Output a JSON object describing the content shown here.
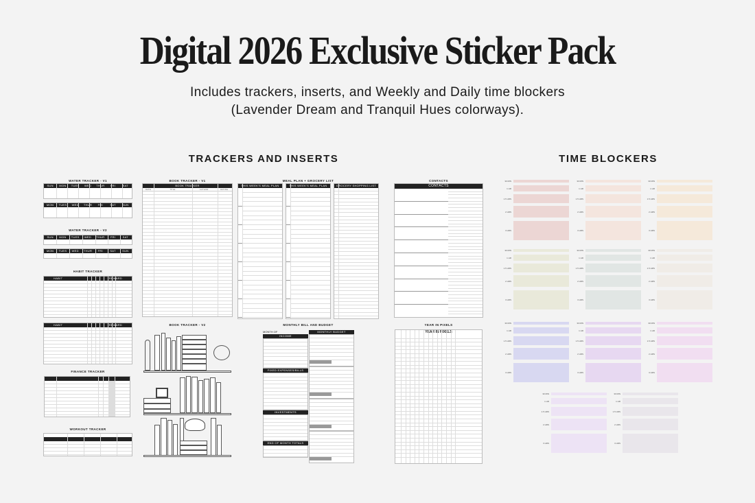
{
  "title": "Digital 2026 Exclusive Sticker Pack",
  "subtitle_line1": "Includes trackers, inserts, and Weekly and Daily time blockers",
  "subtitle_line2": "(Lavender Dream and Tranquil Hues colorways).",
  "sections": {
    "trackers": "TRACKERS AND INSERTS",
    "time_blockers": "TIME BLOCKERS"
  },
  "trackers": {
    "water_v1": "WATER TRACKER - V1",
    "water_v2": "WATER TRACKER - V2",
    "habit": "HABIT TRACKER",
    "finance": "FINANCE TRACKER",
    "workout": "WORKOUT TRACKER",
    "book_v1": "BOOK TRACKER - V1",
    "book_v1_header": "BOOK TRACKER",
    "book_v1_cols": [
      "DATE",
      "TITLE",
      "AUTHOR",
      "RATING"
    ],
    "book_v2": "BOOK TRACKER - V2",
    "meal": "MEAL PLAN + GROCERY LIST",
    "meal_header": "THIS WEEK'S MEAL PLAN",
    "grocery_header": "GROCERY SHOPPING LIST",
    "contacts": "CONTACTS",
    "contacts_header": "CONTACTS",
    "budget": "MONTHLY BILL AND BUDGET",
    "month_of": "MONTH OF",
    "monthly_budget": "MONTHLY BUDGET",
    "income": "INCOME",
    "fixed": "FIXED EXPENSES/BILLS",
    "investments": "INVESTMENTS",
    "end_totals": "END OF MONTH TOTALS",
    "pixels": "YEAR IN PIXELS",
    "pixels_header": "YEAR IN PIXELS",
    "week_sun": [
      "SUN",
      "MON",
      "TUES",
      "WED",
      "THUR",
      "FRI",
      "SAT"
    ],
    "week_mon": [
      "MON",
      "TUES",
      "WED",
      "THUR",
      "FRI",
      "SAT",
      "SUN"
    ],
    "habit_cols": [
      "HABIT",
      "REWARD"
    ]
  },
  "time_blocker_labels": [
    "30 MIN",
    "1 HR",
    "1.5 HRS",
    "2 HRS",
    "3 HRS"
  ],
  "colorways": [
    [
      "#ecd6d4",
      "#f4e5de",
      "#f5e9da"
    ],
    [
      "#e9e9da",
      "#e1e6e4",
      "#f0ece7"
    ],
    [
      "#d8d8f1",
      "#e7d8f1",
      "#f1def1"
    ],
    [
      "#ede3f5",
      "#e9e6eb"
    ]
  ]
}
